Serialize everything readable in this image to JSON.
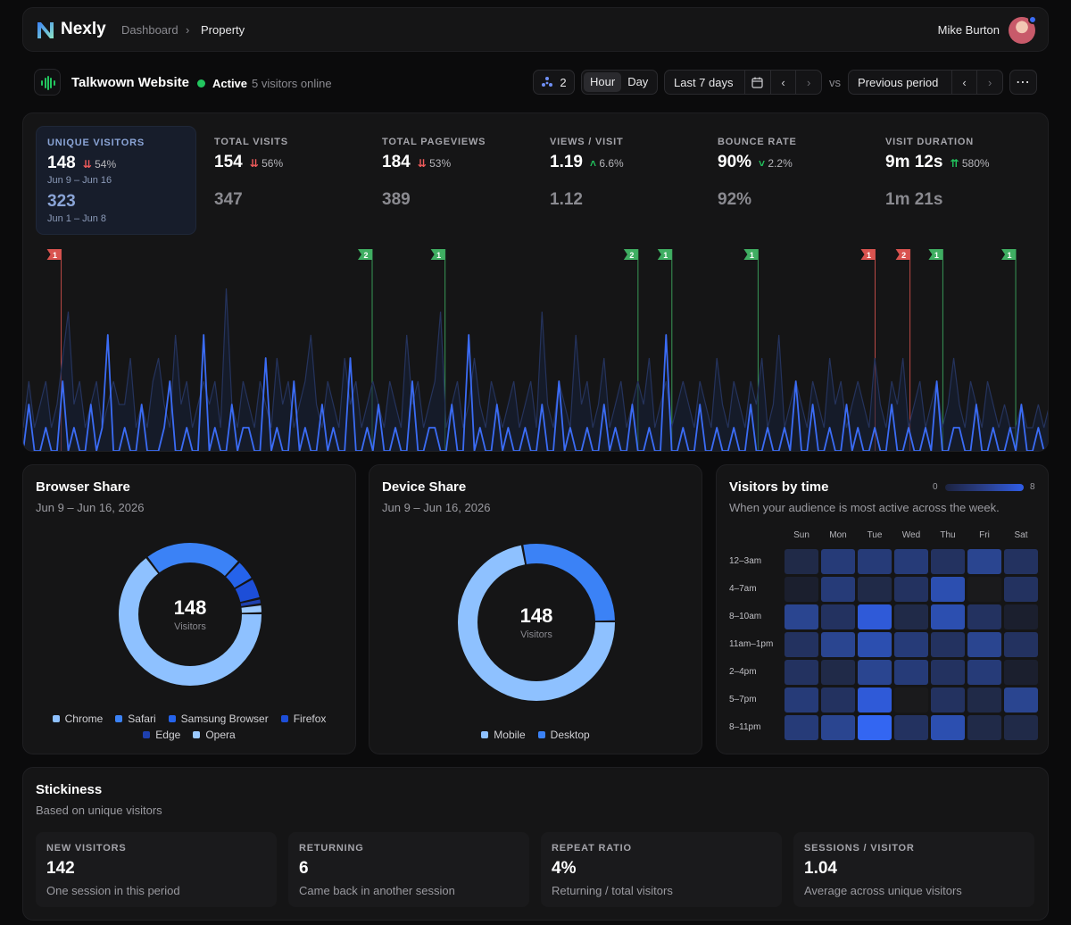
{
  "header": {
    "brand": "Nexly",
    "breadcrumb": [
      "Dashboard",
      "Property"
    ],
    "user_name": "Mike Burton"
  },
  "site": {
    "name": "Talkwown Website",
    "status": "Active",
    "visitors_online": "5 visitors online",
    "segments_count": "2",
    "granularity": [
      "Hour",
      "Day"
    ],
    "range_label": "Last 7 days",
    "vs": "vs",
    "compare_label": "Previous period",
    "more": "⋯"
  },
  "metrics": [
    {
      "label": "UNIQUE VISITORS",
      "value": "148",
      "change": "54%",
      "direction": "down",
      "period": "Jun 9 – Jun 16",
      "previous": "323",
      "previous_period": "Jun 1 – Jun 8"
    },
    {
      "label": "TOTAL VISITS",
      "value": "154",
      "change": "56%",
      "direction": "down",
      "previous": "347"
    },
    {
      "label": "TOTAL PAGEVIEWS",
      "value": "184",
      "change": "53%",
      "direction": "down",
      "previous": "389"
    },
    {
      "label": "VIEWS / VISIT",
      "value": "1.19",
      "change": "6.6%",
      "direction": "up",
      "previous": "1.12"
    },
    {
      "label": "BOUNCE RATE",
      "value": "90%",
      "change": "2.2%",
      "direction": "down-good",
      "previous": "92%"
    },
    {
      "label": "VISIT DURATION",
      "value": "9m 12s",
      "change": "580%",
      "direction": "up-strong",
      "previous": "1m 21s"
    }
  ],
  "chart_data": {
    "type": "line",
    "annotations": [
      {
        "x": 0.037,
        "count": "1",
        "kind": "negative"
      },
      {
        "x": 0.34,
        "count": "2",
        "kind": "positive"
      },
      {
        "x": 0.411,
        "count": "1",
        "kind": "positive"
      },
      {
        "x": 0.599,
        "count": "2",
        "kind": "positive"
      },
      {
        "x": 0.632,
        "count": "1",
        "kind": "positive"
      },
      {
        "x": 0.716,
        "count": "1",
        "kind": "positive"
      },
      {
        "x": 0.83,
        "count": "1",
        "kind": "negative"
      },
      {
        "x": 0.864,
        "count": "2",
        "kind": "negative"
      },
      {
        "x": 0.896,
        "count": "1",
        "kind": "positive"
      },
      {
        "x": 0.967,
        "count": "1",
        "kind": "positive"
      }
    ],
    "series": [
      {
        "values": [
          0,
          2,
          0,
          0,
          1,
          0,
          0,
          3,
          0,
          1,
          0,
          0,
          2,
          0,
          1,
          5,
          0,
          0,
          1,
          0,
          0,
          2,
          0,
          0,
          0,
          1,
          3,
          0,
          0,
          1,
          0,
          0,
          5,
          0,
          1,
          0,
          0,
          2,
          0,
          1,
          1,
          0,
          0,
          4,
          0,
          1,
          0,
          0,
          3,
          0,
          1,
          0,
          0,
          2,
          0,
          1,
          0,
          0,
          4,
          0,
          0,
          1,
          0,
          2,
          0,
          0,
          1,
          0,
          0,
          3,
          0,
          0,
          1,
          1,
          0,
          0,
          2,
          0,
          0,
          5,
          0,
          1,
          0,
          0,
          2,
          0,
          1,
          0,
          0,
          1,
          0,
          0,
          2,
          0,
          0,
          3,
          0,
          1,
          0,
          0,
          1,
          0,
          0,
          2,
          0,
          1,
          0,
          0,
          2,
          0,
          0,
          1,
          0,
          0,
          5,
          0,
          0,
          1,
          0,
          0,
          2,
          0,
          0,
          1,
          0,
          0,
          1,
          0,
          0,
          2,
          0,
          0,
          1,
          0,
          0,
          1,
          0,
          3,
          0,
          0,
          2,
          0,
          0,
          1,
          0,
          0,
          2,
          0,
          1,
          0,
          0,
          1,
          0,
          0,
          2,
          0,
          0,
          1,
          0,
          0,
          1,
          0,
          3,
          0,
          0,
          1,
          1,
          0,
          0,
          2,
          0,
          0,
          1,
          0,
          0,
          1,
          0,
          2,
          0,
          0,
          1,
          0,
          0
        ]
      },
      {
        "values": [
          1,
          3,
          1,
          2,
          3,
          1,
          2,
          4,
          6,
          2,
          3,
          1,
          2,
          3,
          1,
          2,
          3,
          2,
          2,
          4,
          1,
          2,
          1,
          3,
          4,
          2,
          1,
          5,
          2,
          3,
          1,
          2,
          3,
          2,
          3,
          1,
          7,
          2,
          1,
          3,
          2,
          1,
          3,
          2,
          1,
          4,
          2,
          3,
          1,
          2,
          3,
          5,
          2,
          1,
          3,
          2,
          1,
          4,
          2,
          3,
          1,
          2,
          3,
          2,
          1,
          3,
          2,
          1,
          5,
          2,
          3,
          1,
          2,
          3,
          6,
          1,
          2,
          3,
          1,
          2,
          4,
          2,
          1,
          3,
          2,
          1,
          2,
          3,
          1,
          2,
          3,
          1,
          6,
          2,
          1,
          3,
          2,
          1,
          5,
          2,
          3,
          1,
          2,
          4,
          1,
          2,
          3,
          1,
          2,
          3,
          2,
          4,
          1,
          2,
          3,
          1,
          2,
          3,
          2,
          1,
          3,
          2,
          1,
          4,
          2,
          1,
          3,
          2,
          1,
          3,
          2,
          4,
          1,
          2,
          5,
          1,
          2,
          3,
          2,
          1,
          3,
          2,
          1,
          4,
          2,
          3,
          1,
          2,
          3,
          2,
          1,
          4,
          2,
          1,
          3,
          2,
          4,
          1,
          2,
          3,
          1,
          2,
          3,
          1,
          2,
          4,
          2,
          1,
          3,
          2,
          1,
          3,
          2,
          1,
          2,
          1,
          1,
          2,
          1,
          1,
          2,
          1,
          2
        ]
      }
    ]
  },
  "browser_share": {
    "title": "Browser Share",
    "period": "Jun 9 – Jun 16, 2026",
    "total": "148",
    "total_label": "Visitors",
    "slices": [
      {
        "name": "Chrome",
        "value": 96,
        "color": "#8ec1ff"
      },
      {
        "name": "Safari",
        "value": 33,
        "color": "#3b82f6"
      },
      {
        "name": "Samsung Browser",
        "value": 7,
        "color": "#2563eb"
      },
      {
        "name": "Firefox",
        "value": 7,
        "color": "#1d4ed8"
      },
      {
        "name": "Edge",
        "value": 2,
        "color": "#1e40af"
      },
      {
        "name": "Opera",
        "value": 3,
        "color": "#9ccaff"
      }
    ]
  },
  "device_share": {
    "title": "Device Share",
    "period": "Jun 9 – Jun 16, 2026",
    "total": "148",
    "total_label": "Visitors",
    "slices": [
      {
        "name": "Mobile",
        "value": 107,
        "color": "#8ec1ff"
      },
      {
        "name": "Desktop",
        "value": 41,
        "color": "#3b82f6"
      }
    ]
  },
  "heatmap": {
    "title": "Visitors by time",
    "subtitle": "When your audience is most active across the week.",
    "scale_min": "0",
    "scale_max": "8",
    "days": [
      "Sun",
      "Mon",
      "Tue",
      "Wed",
      "Thu",
      "Fri",
      "Sat"
    ],
    "rows": [
      {
        "label": "12–3am",
        "values": [
          2,
          4,
          4,
          4,
          3,
          5,
          3
        ]
      },
      {
        "label": "4–7am",
        "values": [
          1,
          4,
          2,
          3,
          6,
          0,
          3
        ]
      },
      {
        "label": "8–10am",
        "values": [
          5,
          3,
          7,
          2,
          6,
          3,
          1
        ]
      },
      {
        "label": "11am–1pm",
        "values": [
          3,
          5,
          6,
          4,
          3,
          5,
          3
        ]
      },
      {
        "label": "2–4pm",
        "values": [
          3,
          2,
          5,
          4,
          3,
          4,
          1
        ]
      },
      {
        "label": "5–7pm",
        "values": [
          4,
          3,
          7,
          0,
          3,
          2,
          5
        ]
      },
      {
        "label": "8–11pm",
        "values": [
          4,
          5,
          8,
          3,
          6,
          2,
          2
        ]
      }
    ]
  },
  "stickiness": {
    "title": "Stickiness",
    "subtitle": "Based on unique visitors",
    "stats": [
      {
        "label": "NEW VISITORS",
        "value": "142",
        "desc": "One session in this period"
      },
      {
        "label": "RETURNING",
        "value": "6",
        "desc": "Came back in another session"
      },
      {
        "label": "REPEAT RATIO",
        "value": "4%",
        "desc": "Returning / total visitors"
      },
      {
        "label": "SESSIONS / VISITOR",
        "value": "1.04",
        "desc": "Average across unique visitors"
      }
    ]
  }
}
